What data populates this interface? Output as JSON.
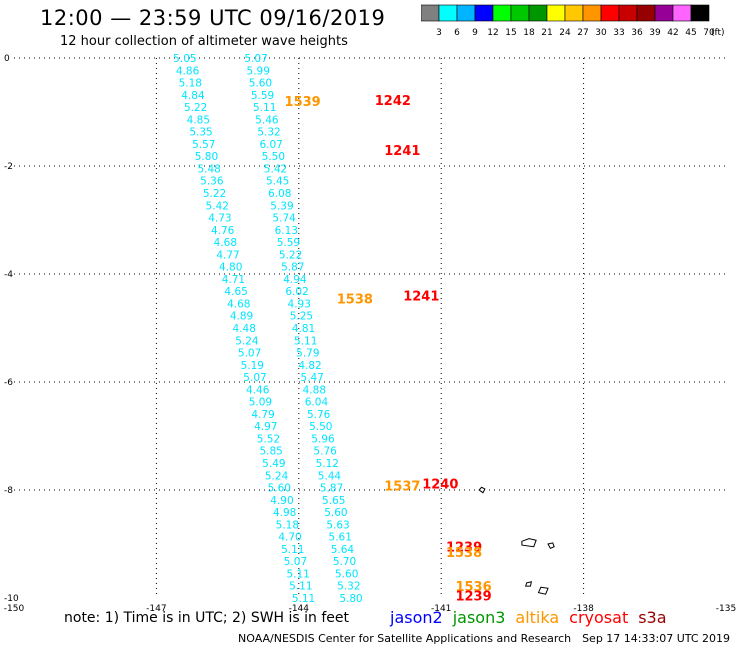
{
  "header": {
    "title": "12:00 — 23:59 UTC 09/16/2019",
    "subtitle": "12 hour collection of altimeter wave heights"
  },
  "colorbar": {
    "unit_label": "(ft)",
    "ticks": [
      "3",
      "6",
      "9",
      "12",
      "15",
      "18",
      "21",
      "24",
      "27",
      "30",
      "33",
      "36",
      "39",
      "42",
      "45",
      "70"
    ],
    "colors": [
      "#808080",
      "#00ffff",
      "#00b4ff",
      "#0000ff",
      "#00ff00",
      "#00c800",
      "#009600",
      "#ffff00",
      "#ffc800",
      "#ff9600",
      "#ff0000",
      "#c80000",
      "#960000",
      "#960096",
      "#ff64ff",
      "#000000"
    ]
  },
  "footer": {
    "note": "note: 1) Time is in UTC; 2) SWH is in feet",
    "satellites": [
      {
        "name": "jason2",
        "color": "#0000ff"
      },
      {
        "name": "jason3",
        "color": "#009600"
      },
      {
        "name": "altika",
        "color": "#ff9600"
      },
      {
        "name": "cryosat",
        "color": "#ff0000"
      },
      {
        "name": "s3a",
        "color": "#960000"
      }
    ],
    "credit": "NOAA/NESDIS Center for Satellite Applications and Research",
    "generated": "Sep 17 14:33:07 UTC 2019"
  },
  "chart_data": {
    "type": "scatter",
    "xlim": [
      -150,
      -135
    ],
    "ylim": [
      -10,
      0
    ],
    "x_ticks": [
      -150,
      -147,
      -144,
      -141,
      -138,
      -135
    ],
    "y_ticks": [
      0,
      -2,
      -4,
      -6,
      -8,
      -10
    ],
    "grid": true,
    "series": [
      {
        "name": "cryosat",
        "color": "#00e5ff",
        "track": [
          [
            -146.4,
            0
          ],
          [
            -143.9,
            -10
          ]
        ],
        "values": [
          "5.05",
          "4.86",
          "5.18",
          "4.84",
          "5.22",
          "4.85",
          "5.35",
          "5.57",
          "5.80",
          "5.48",
          "5.36",
          "5.22",
          "5.42",
          "4.73",
          "4.76",
          "4.68",
          "4.77",
          "4.80",
          "4.71",
          "4.65",
          "4.68",
          "4.89",
          "4.48",
          "5.24",
          "5.07",
          "5.19",
          "5.07",
          "4.46",
          "5.09",
          "4.79",
          "4.97",
          "5.52",
          "5.85",
          "5.49",
          "5.24",
          "5.60",
          "4.90",
          "4.98",
          "5.18",
          "4.70",
          "5.11",
          "5.07",
          "5.11",
          "5.11",
          "5.11"
        ]
      },
      {
        "name": "s3a",
        "color": "#00e5ff",
        "track": [
          [
            -144.9,
            0
          ],
          [
            -142.9,
            -10
          ]
        ],
        "values": [
          "5.07",
          "5.99",
          "5.60",
          "5.59",
          "5.11",
          "5.46",
          "5.32",
          "6.07",
          "5.50",
          "5.42",
          "5.45",
          "6.08",
          "5.39",
          "5.74",
          "6.13",
          "5.59",
          "5.22",
          "5.87",
          "4.94",
          "6.02",
          "4.93",
          "5.25",
          "4.81",
          "5.11",
          "5.79",
          "4.82",
          "5.47",
          "4.88",
          "6.04",
          "5.76",
          "5.50",
          "5.96",
          "5.76",
          "5.12",
          "5.44",
          "5.87",
          "5.65",
          "5.60",
          "5.63",
          "5.61",
          "5.64",
          "5.70",
          "5.60",
          "5.32",
          "5.80"
        ]
      }
    ],
    "time_labels": [
      {
        "text": "1539",
        "x": -144.3,
        "y": -0.8,
        "color": "#ff9600"
      },
      {
        "text": "1242",
        "x": -142.4,
        "y": -0.78,
        "color": "#ff0000"
      },
      {
        "text": "1241",
        "x": -142.2,
        "y": -1.7,
        "color": "#ff0000"
      },
      {
        "text": "1538",
        "x": -143.2,
        "y": -4.45,
        "color": "#ff9600"
      },
      {
        "text": "1241",
        "x": -141.8,
        "y": -4.4,
        "color": "#ff0000"
      },
      {
        "text": "1537",
        "x": -142.2,
        "y": -7.92,
        "color": "#ff9600"
      },
      {
        "text": "1240",
        "x": -141.4,
        "y": -7.88,
        "color": "#ff0000"
      },
      {
        "text": "1239",
        "x": -140.9,
        "y": -9.05,
        "color": "#ff0000"
      },
      {
        "text": "1538",
        "x": -140.9,
        "y": -9.15,
        "color": "#ff9600"
      },
      {
        "text": "1536",
        "x": -140.7,
        "y": -9.78,
        "color": "#ff9600"
      },
      {
        "text": "1239",
        "x": -140.7,
        "y": -9.95,
        "color": "#ff0000"
      }
    ],
    "land": [
      [
        [
          -139.3,
          -8.95
        ],
        [
          -139.15,
          -8.9
        ],
        [
          -139.0,
          -8.93
        ],
        [
          -139.05,
          -9.05
        ],
        [
          -139.3,
          -9.02
        ]
      ],
      [
        [
          -138.75,
          -9.0
        ],
        [
          -138.65,
          -8.98
        ],
        [
          -138.62,
          -9.05
        ],
        [
          -138.7,
          -9.08
        ]
      ],
      [
        [
          -139.2,
          -9.72
        ],
        [
          -139.1,
          -9.7
        ],
        [
          -139.12,
          -9.78
        ],
        [
          -139.22,
          -9.78
        ]
      ],
      [
        [
          -138.9,
          -9.8
        ],
        [
          -138.75,
          -9.82
        ],
        [
          -138.8,
          -9.93
        ],
        [
          -138.95,
          -9.9
        ]
      ],
      [
        [
          -140.2,
          -8.0
        ],
        [
          -140.15,
          -7.95
        ],
        [
          -140.08,
          -7.98
        ],
        [
          -140.12,
          -8.05
        ]
      ]
    ]
  }
}
